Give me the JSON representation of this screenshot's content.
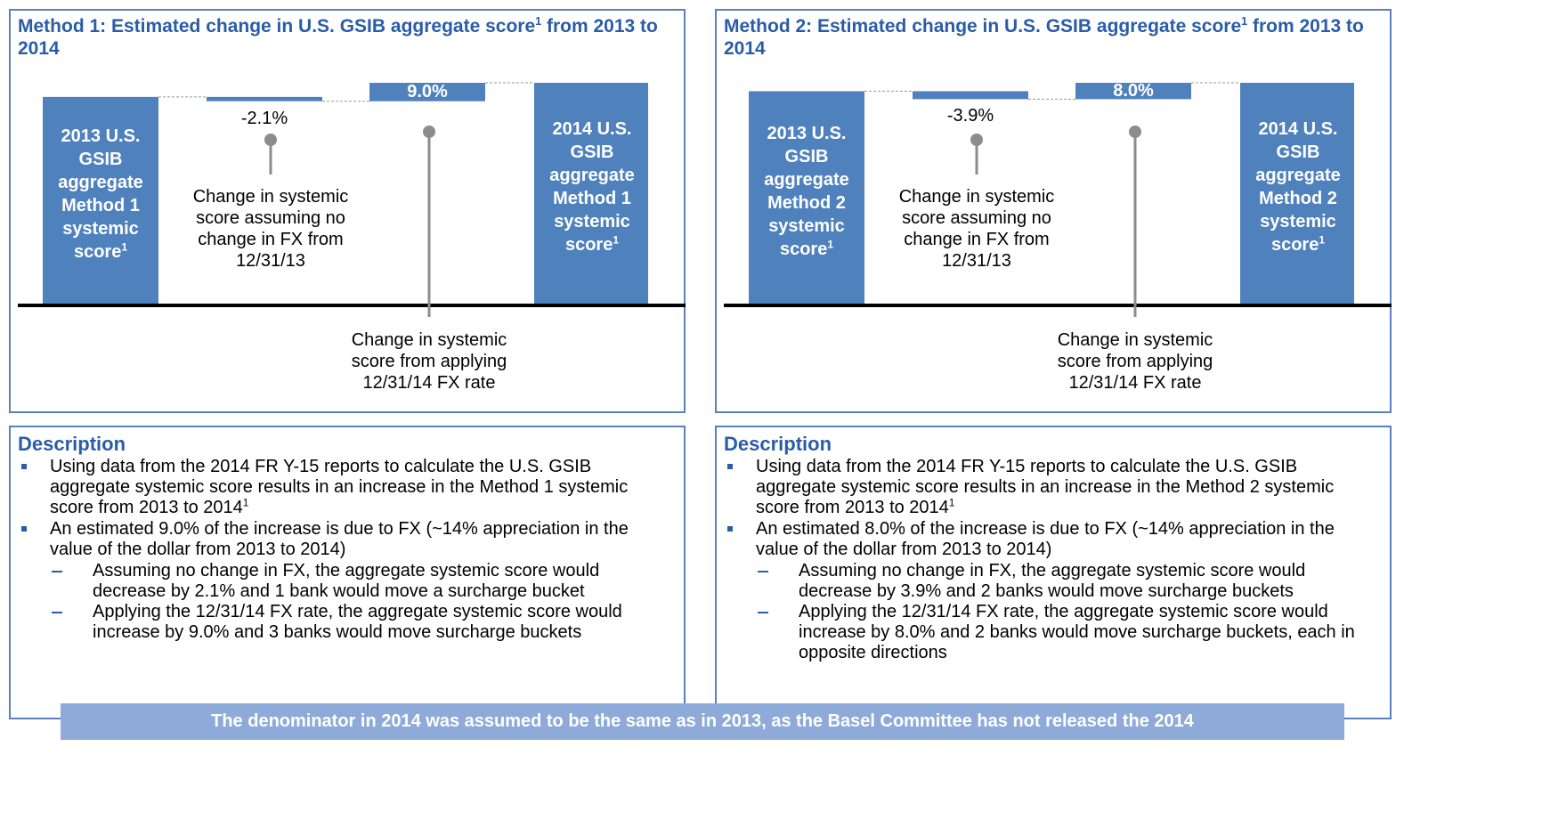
{
  "panels": [
    {
      "title": "Method 1: Estimated change in U.S. GSIB aggregate score",
      "title_sup": "1",
      "title_end": " from 2013 to 2014",
      "chart": {
        "type": "waterfall",
        "start_label": [
          "2013 U.S.",
          "GSIB",
          "aggregate",
          "Method 1",
          "systemic",
          "score"
        ],
        "start_sup": "1",
        "end_label": [
          "2014 U.S.",
          "GSIB",
          "aggregate",
          "Method 1",
          "systemic",
          "score"
        ],
        "end_sup": "1",
        "values": [
          -2.1,
          9.0
        ],
        "value_labels": [
          "-2.1%",
          "9.0%"
        ],
        "annotations": [
          [
            "Change in systemic",
            "score assuming no",
            "change in FX from",
            "12/31/13"
          ],
          [
            "Change in systemic",
            "score from applying",
            "12/31/14 FX rate"
          ]
        ]
      },
      "description": {
        "heading": "Description",
        "bullets": [
          {
            "text": "Using data from the 2014 FR Y-15 reports to calculate the U.S. GSIB aggregate systemic score results in an increase in the Method 1 systemic score from 2013 to 2014",
            "sup": "1",
            "subs": []
          },
          {
            "text": "An estimated 9.0% of the increase is due to FX (~14% appreciation in the value of the dollar from 2013 to 2014)",
            "subs": [
              "Assuming no change in FX, the aggregate systemic score would decrease by 2.1% and 1 bank would move a surcharge bucket",
              "Applying the 12/31/14 FX rate, the aggregate systemic score would increase by 9.0% and 3 banks would move surcharge buckets"
            ]
          }
        ]
      }
    },
    {
      "title": "Method 2: Estimated change in U.S. GSIB aggregate score",
      "title_sup": "1",
      "title_end": " from 2013 to 2014",
      "chart": {
        "type": "waterfall",
        "start_label": [
          "2013 U.S.",
          "GSIB",
          "aggregate",
          "Method 2",
          "systemic",
          "score"
        ],
        "start_sup": "1",
        "end_label": [
          "2014 U.S.",
          "GSIB",
          "aggregate",
          "Method 2",
          "systemic",
          "score"
        ],
        "end_sup": "1",
        "values": [
          -3.9,
          8.0
        ],
        "value_labels": [
          "-3.9%",
          "8.0%"
        ],
        "annotations": [
          [
            "Change in systemic",
            "score assuming no",
            "change in FX from",
            "12/31/13"
          ],
          [
            "Change in systemic",
            "score from applying",
            "12/31/14 FX rate"
          ]
        ]
      },
      "description": {
        "heading": "Description",
        "bullets": [
          {
            "text": "Using data from the 2014 FR Y-15 reports to calculate the U.S. GSIB aggregate systemic score results in an increase in the Method 2 systemic score from 2013 to 2014",
            "sup": "1",
            "subs": []
          },
          {
            "text": "An estimated 8.0% of the increase is due to FX (~14% appreciation in the value of the dollar from 2013 to 2014)",
            "subs": [
              "Assuming no change in FX, the aggregate systemic score would decrease by 3.9% and 2 banks would move surcharge buckets",
              "Applying the 12/31/14 FX rate, the aggregate systemic score would increase by 8.0% and 2 banks would move surcharge buckets, each in opposite directions"
            ]
          }
        ]
      }
    }
  ],
  "footer": "The denominator in 2014 was assumed to be the same as in 2013, as the Basel Committee has not released the 2014"
}
